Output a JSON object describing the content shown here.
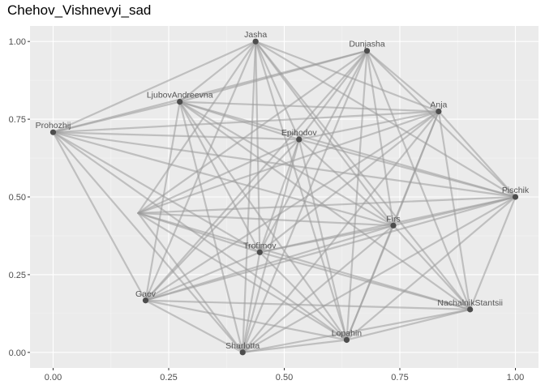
{
  "title": "Chehov_Vishnevyi_sad",
  "colors": {
    "panel": "#ebebeb",
    "grid_major": "#ffffff",
    "grid_minor": "#f5f5f5",
    "edge": "#9a9a9a",
    "node": "#4d4d4d",
    "label": "#555555"
  },
  "chart_data": {
    "type": "network",
    "xlim": [
      -0.05,
      1.05
    ],
    "ylim": [
      -0.05,
      1.05
    ],
    "x_ticks": [
      0.0,
      0.25,
      0.5,
      0.75,
      1.0
    ],
    "y_ticks": [
      0.0,
      0.25,
      0.5,
      0.75,
      1.0
    ],
    "x_tick_labels": [
      "0.00",
      "0.25",
      "0.50",
      "0.75",
      "1.00"
    ],
    "y_tick_labels": [
      "0.00",
      "0.25",
      "0.50",
      "0.75",
      "1.00"
    ],
    "grid": true,
    "nodes": [
      {
        "id": "Jasha",
        "label": "Jasha",
        "x": 0.438,
        "y": 1.0
      },
      {
        "id": "Dunjasha",
        "label": "Dunjasha",
        "x": 0.679,
        "y": 0.97
      },
      {
        "id": "LjubovAndreevna",
        "label": "LjubovAndreevna",
        "x": 0.274,
        "y": 0.806
      },
      {
        "id": "Anja",
        "label": "Anja",
        "x": 0.834,
        "y": 0.775
      },
      {
        "id": "Prohozhij",
        "label": "Prohozhij",
        "x": 0.0,
        "y": 0.708
      },
      {
        "id": "Epihodov",
        "label": "Epihodov",
        "x": 0.532,
        "y": 0.685
      },
      {
        "id": "Pischik",
        "label": "Pischik",
        "x": 1.0,
        "y": 0.5
      },
      {
        "id": "Firs",
        "label": "Firs",
        "x": 0.736,
        "y": 0.408
      },
      {
        "id": "Trofimov",
        "label": "Trofimov",
        "x": 0.447,
        "y": 0.322
      },
      {
        "id": "Gaev",
        "label": "Gaev",
        "x": 0.2,
        "y": 0.167
      },
      {
        "id": "NachalnikStantsii",
        "label": "NachalnikStantsii",
        "x": 0.902,
        "y": 0.138
      },
      {
        "id": "Lopahin",
        "label": "Lopahin",
        "x": 0.635,
        "y": 0.04
      },
      {
        "id": "Sharlotta",
        "label": "Sharlotta",
        "x": 0.41,
        "y": 0.0
      },
      {
        "id": "Neznakomets",
        "label": "",
        "x": 0.184,
        "y": 0.448
      }
    ],
    "edges": [
      [
        "Jasha",
        "LjubovAndreevna"
      ],
      [
        "Jasha",
        "Anja"
      ],
      [
        "Jasha",
        "Epihodov"
      ],
      [
        "Jasha",
        "Pischik"
      ],
      [
        "Jasha",
        "Firs"
      ],
      [
        "Jasha",
        "Trofimov"
      ],
      [
        "Jasha",
        "Gaev"
      ],
      [
        "Jasha",
        "NachalnikStantsii"
      ],
      [
        "Jasha",
        "Lopahin"
      ],
      [
        "Jasha",
        "Sharlotta"
      ],
      [
        "Jasha",
        "Neznakomets"
      ],
      [
        "Jasha",
        "Prohozhij"
      ],
      [
        "Dunjasha",
        "LjubovAndreevna"
      ],
      [
        "Dunjasha",
        "Anja"
      ],
      [
        "Dunjasha",
        "Prohozhij"
      ],
      [
        "Dunjasha",
        "Epihodov"
      ],
      [
        "Dunjasha",
        "Firs"
      ],
      [
        "Dunjasha",
        "Trofimov"
      ],
      [
        "Dunjasha",
        "Gaev"
      ],
      [
        "Dunjasha",
        "NachalnikStantsii"
      ],
      [
        "Dunjasha",
        "Lopahin"
      ],
      [
        "Dunjasha",
        "Sharlotta"
      ],
      [
        "Dunjasha",
        "Neznakomets"
      ],
      [
        "Dunjasha",
        "Pischik"
      ],
      [
        "LjubovAndreevna",
        "Anja"
      ],
      [
        "LjubovAndreevna",
        "Prohozhij"
      ],
      [
        "LjubovAndreevna",
        "Epihodov"
      ],
      [
        "LjubovAndreevna",
        "Pischik"
      ],
      [
        "LjubovAndreevna",
        "Firs"
      ],
      [
        "LjubovAndreevna",
        "Trofimov"
      ],
      [
        "LjubovAndreevna",
        "Gaev"
      ],
      [
        "LjubovAndreevna",
        "NachalnikStantsii"
      ],
      [
        "LjubovAndreevna",
        "Lopahin"
      ],
      [
        "LjubovAndreevna",
        "Sharlotta"
      ],
      [
        "Anja",
        "Prohozhij"
      ],
      [
        "Anja",
        "Epihodov"
      ],
      [
        "Anja",
        "Pischik"
      ],
      [
        "Anja",
        "Firs"
      ],
      [
        "Anja",
        "Trofimov"
      ],
      [
        "Anja",
        "Gaev"
      ],
      [
        "Anja",
        "NachalnikStantsii"
      ],
      [
        "Anja",
        "Lopahin"
      ],
      [
        "Anja",
        "Sharlotta"
      ],
      [
        "Anja",
        "Neznakomets"
      ],
      [
        "Prohozhij",
        "Epihodov"
      ],
      [
        "Prohozhij",
        "Pischik"
      ],
      [
        "Prohozhij",
        "Firs"
      ],
      [
        "Prohozhij",
        "Trofimov"
      ],
      [
        "Prohozhij",
        "Gaev"
      ],
      [
        "Prohozhij",
        "Lopahin"
      ],
      [
        "Prohozhij",
        "Sharlotta"
      ],
      [
        "Epihodov",
        "Pischik"
      ],
      [
        "Epihodov",
        "Firs"
      ],
      [
        "Epihodov",
        "Trofimov"
      ],
      [
        "Epihodov",
        "Gaev"
      ],
      [
        "Epihodov",
        "Lopahin"
      ],
      [
        "Epihodov",
        "Sharlotta"
      ],
      [
        "Epihodov",
        "Neznakomets"
      ],
      [
        "Pischik",
        "Firs"
      ],
      [
        "Pischik",
        "Trofimov"
      ],
      [
        "Pischik",
        "Gaev"
      ],
      [
        "Pischik",
        "NachalnikStantsii"
      ],
      [
        "Pischik",
        "Lopahin"
      ],
      [
        "Pischik",
        "Sharlotta"
      ],
      [
        "Pischik",
        "Neznakomets"
      ],
      [
        "Firs",
        "Trofimov"
      ],
      [
        "Firs",
        "Gaev"
      ],
      [
        "Firs",
        "NachalnikStantsii"
      ],
      [
        "Firs",
        "Lopahin"
      ],
      [
        "Firs",
        "Sharlotta"
      ],
      [
        "Firs",
        "Neznakomets"
      ],
      [
        "Trofimov",
        "Gaev"
      ],
      [
        "Trofimov",
        "NachalnikStantsii"
      ],
      [
        "Trofimov",
        "Lopahin"
      ],
      [
        "Trofimov",
        "Sharlotta"
      ],
      [
        "Trofimov",
        "Neznakomets"
      ],
      [
        "Gaev",
        "NachalnikStantsii"
      ],
      [
        "Gaev",
        "Lopahin"
      ],
      [
        "Gaev",
        "Sharlotta"
      ],
      [
        "NachalnikStantsii",
        "Lopahin"
      ],
      [
        "NachalnikStantsii",
        "Sharlotta"
      ],
      [
        "NachalnikStantsii",
        "Neznakomets"
      ],
      [
        "Lopahin",
        "Sharlotta"
      ],
      [
        "Lopahin",
        "Neznakomets"
      ],
      [
        "Sharlotta",
        "Neznakomets"
      ]
    ]
  }
}
